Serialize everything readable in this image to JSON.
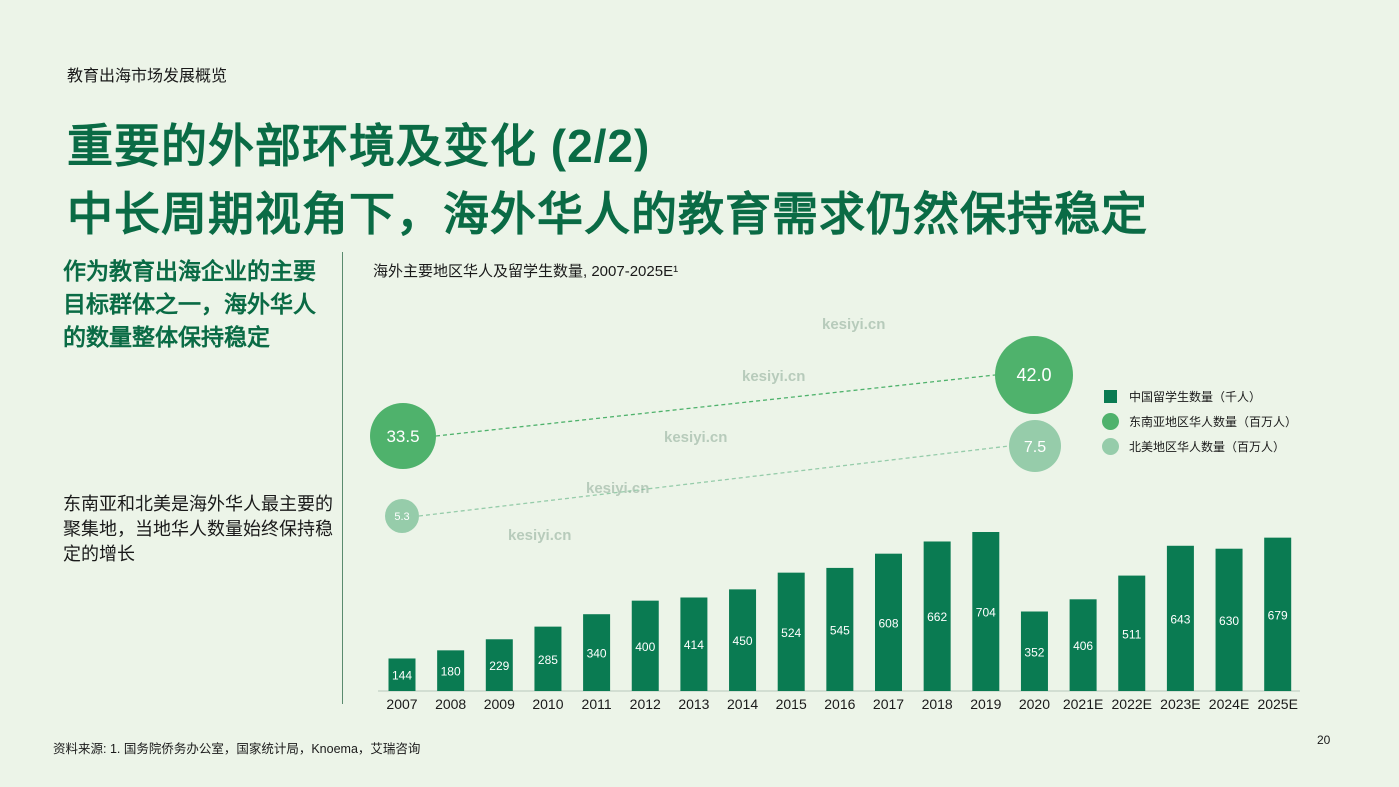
{
  "header": {
    "section": "教育出海市场发展概览",
    "title_line1": "重要的外部环境及变化 (2/2)",
    "title_line2": "中长周期视角下，海外华人的教育需求仍然保持稳定"
  },
  "left": {
    "lead": "作为教育出海企业的主要目标群体之一，海外华人的数量整体保持稳定",
    "sub": "东南亚和北美是海外华人最主要的聚集地，当地华人数量始终保持稳定的增长"
  },
  "footer": {
    "source": "资料来源: 1. 国务院侨务办公室，国家统计局，Knoema，艾瑞咨询",
    "page": "20"
  },
  "watermark": "kesiyi.cn",
  "colors": {
    "bar": "#0a7b52",
    "sea_dot": "#4fb26c",
    "na_dot": "#96ccaa",
    "title_green": "#0a6b45"
  },
  "chart_data": {
    "type": "bar",
    "title": "海外主要地区华人及留学生数量, 2007-2025E¹",
    "categories": [
      "2007",
      "2008",
      "2009",
      "2010",
      "2011",
      "2012",
      "2013",
      "2014",
      "2015",
      "2016",
      "2017",
      "2018",
      "2019",
      "2020",
      "2021E",
      "2022E",
      "2023E",
      "2024E",
      "2025E"
    ],
    "series": [
      {
        "name": "中国留学生数量（千人）",
        "values": [
          144,
          180,
          229,
          285,
          340,
          400,
          414,
          450,
          524,
          545,
          608,
          662,
          704,
          352,
          406,
          511,
          643,
          630,
          679
        ]
      }
    ],
    "bubbles": [
      {
        "name": "东南亚地区华人数量（百万人）",
        "start": {
          "x": "2007",
          "value": 33.5,
          "label": "33.5"
        },
        "end": {
          "x": "2025E",
          "value": 42.0,
          "label": "42.0"
        }
      },
      {
        "name": "北美地区华人数量（百万人）",
        "start": {
          "x": "2007",
          "value": 5.3,
          "label": "5.3"
        },
        "end": {
          "x": "2025E",
          "value": 7.5,
          "label": "7.5"
        }
      }
    ],
    "legend": [
      "中国留学生数量（千人）",
      "东南亚地区华人数量（百万人）",
      "北美地区华人数量（百万人）"
    ],
    "legend_position": "right"
  }
}
